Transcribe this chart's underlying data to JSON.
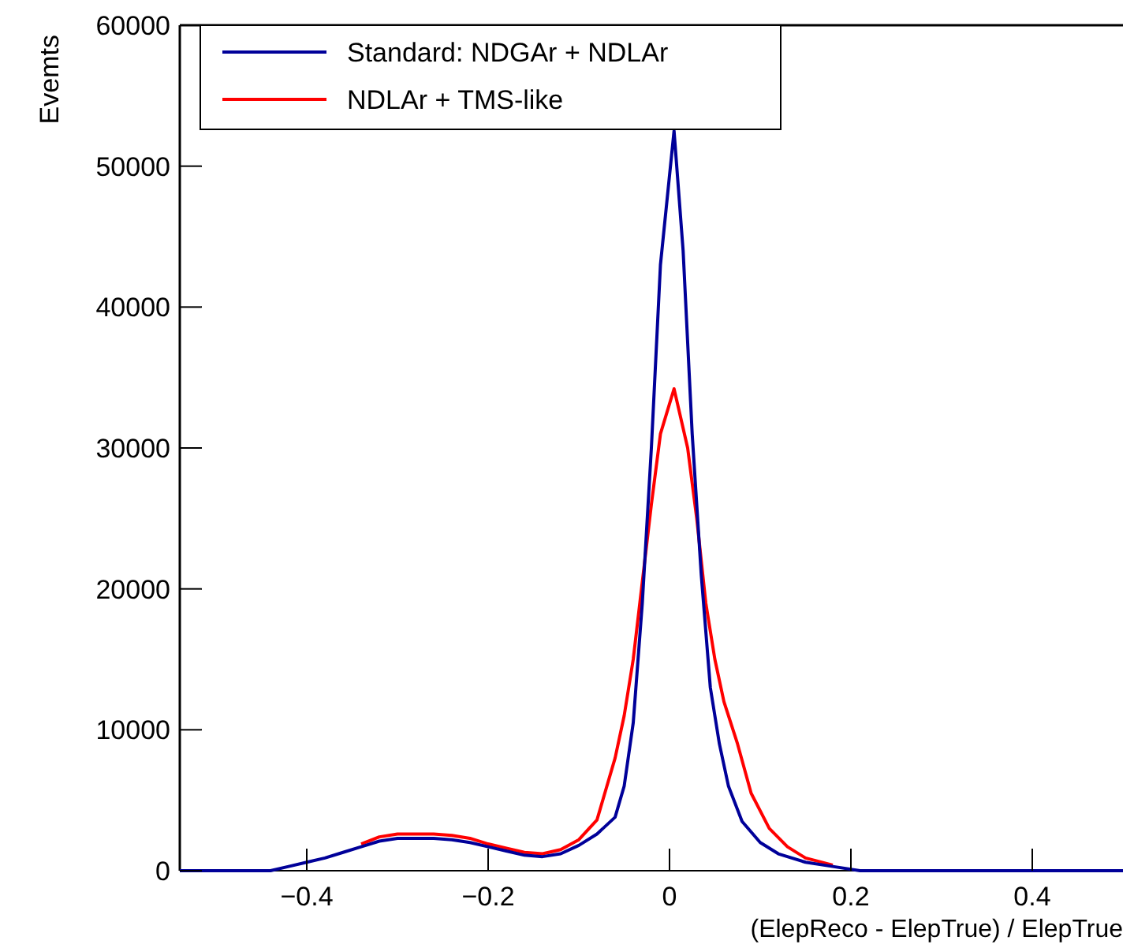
{
  "chart_data": {
    "type": "line",
    "xlabel": "(ElepReco - ElepTrue) / ElepTrue",
    "ylabel": "Evemts",
    "xlim": [
      -0.54,
      0.5
    ],
    "ylim": [
      0,
      60000
    ],
    "xticks": [
      {
        "value": -0.4,
        "label": "−0.4"
      },
      {
        "value": -0.2,
        "label": "−0.2"
      },
      0,
      0.2,
      0.4
    ],
    "yticks": [
      0,
      10000,
      20000,
      30000,
      40000,
      50000,
      60000
    ],
    "legend": "top left",
    "grid": false,
    "series": [
      {
        "name": "Standard: NDGAr + NDLAr",
        "color": "#000099",
        "x": [
          -0.54,
          -0.44,
          -0.42,
          -0.4,
          -0.38,
          -0.36,
          -0.34,
          -0.32,
          -0.3,
          -0.28,
          -0.26,
          -0.24,
          -0.22,
          -0.2,
          -0.18,
          -0.16,
          -0.14,
          -0.12,
          -0.1,
          -0.08,
          -0.06,
          -0.05,
          -0.04,
          -0.03,
          -0.02,
          -0.01,
          0.005,
          0.015,
          0.025,
          0.035,
          0.045,
          0.055,
          0.065,
          0.08,
          0.1,
          0.12,
          0.15,
          0.18,
          0.21,
          0.25,
          0.5
        ],
        "values": [
          0,
          0,
          300,
          600,
          900,
          1300,
          1700,
          2100,
          2300,
          2300,
          2300,
          2200,
          2000,
          1700,
          1400,
          1100,
          1000,
          1200,
          1800,
          2600,
          3800,
          6000,
          10500,
          19000,
          30000,
          43000,
          52500,
          44000,
          31000,
          21000,
          13000,
          9000,
          6000,
          3500,
          2000,
          1200,
          600,
          300,
          0,
          0,
          0
        ]
      },
      {
        "name": "NDLAr +  TMS-like",
        "color": "#ff0000",
        "x": [
          -0.34,
          -0.32,
          -0.3,
          -0.28,
          -0.26,
          -0.24,
          -0.22,
          -0.2,
          -0.18,
          -0.16,
          -0.14,
          -0.12,
          -0.1,
          -0.08,
          -0.06,
          -0.05,
          -0.04,
          -0.03,
          -0.02,
          -0.01,
          0.005,
          0.02,
          0.03,
          0.04,
          0.05,
          0.06,
          0.075,
          0.09,
          0.11,
          0.13,
          0.15,
          0.18
        ],
        "values": [
          1900,
          2400,
          2600,
          2600,
          2600,
          2500,
          2300,
          1900,
          1600,
          1300,
          1200,
          1500,
          2200,
          3600,
          8000,
          11000,
          15000,
          20500,
          26000,
          31000,
          34200,
          30000,
          25000,
          19000,
          15000,
          12000,
          9000,
          5500,
          3000,
          1700,
          900,
          400
        ]
      }
    ]
  }
}
